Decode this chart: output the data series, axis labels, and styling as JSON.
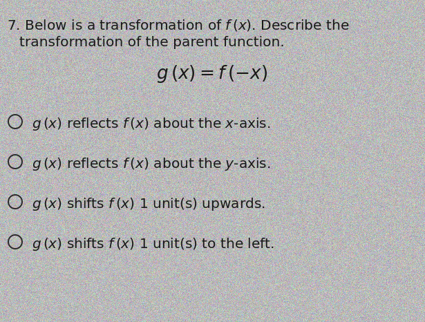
{
  "background_color": "#b8b8b8",
  "text_color": "#1a1a1a",
  "circle_color": "#2a2a2a",
  "question_number": "7.",
  "line1": "Below is a transformation of $f\\,(x)$. Describe the",
  "line2": "transformation of the parent function.",
  "equation": "$g\\,(x) = f\\,(-x)$",
  "options": [
    "$g\\,(x)$ reflects $f\\,(x)$ about the $x$-axis.",
    "$g\\,(x)$ reflects $f\\,(x)$ about the $y$-axis.",
    "$g\\,(x)$ shifts $f\\,(x)$ 1 unit(s) upwards.",
    "$g\\,(x)$ shifts $f\\,(x)$ 1 unit(s) to the left."
  ],
  "q_fontsize": 14.5,
  "eq_fontsize": 19,
  "opt_fontsize": 14.5,
  "noise_seed": 42,
  "noise_intensity": 18
}
